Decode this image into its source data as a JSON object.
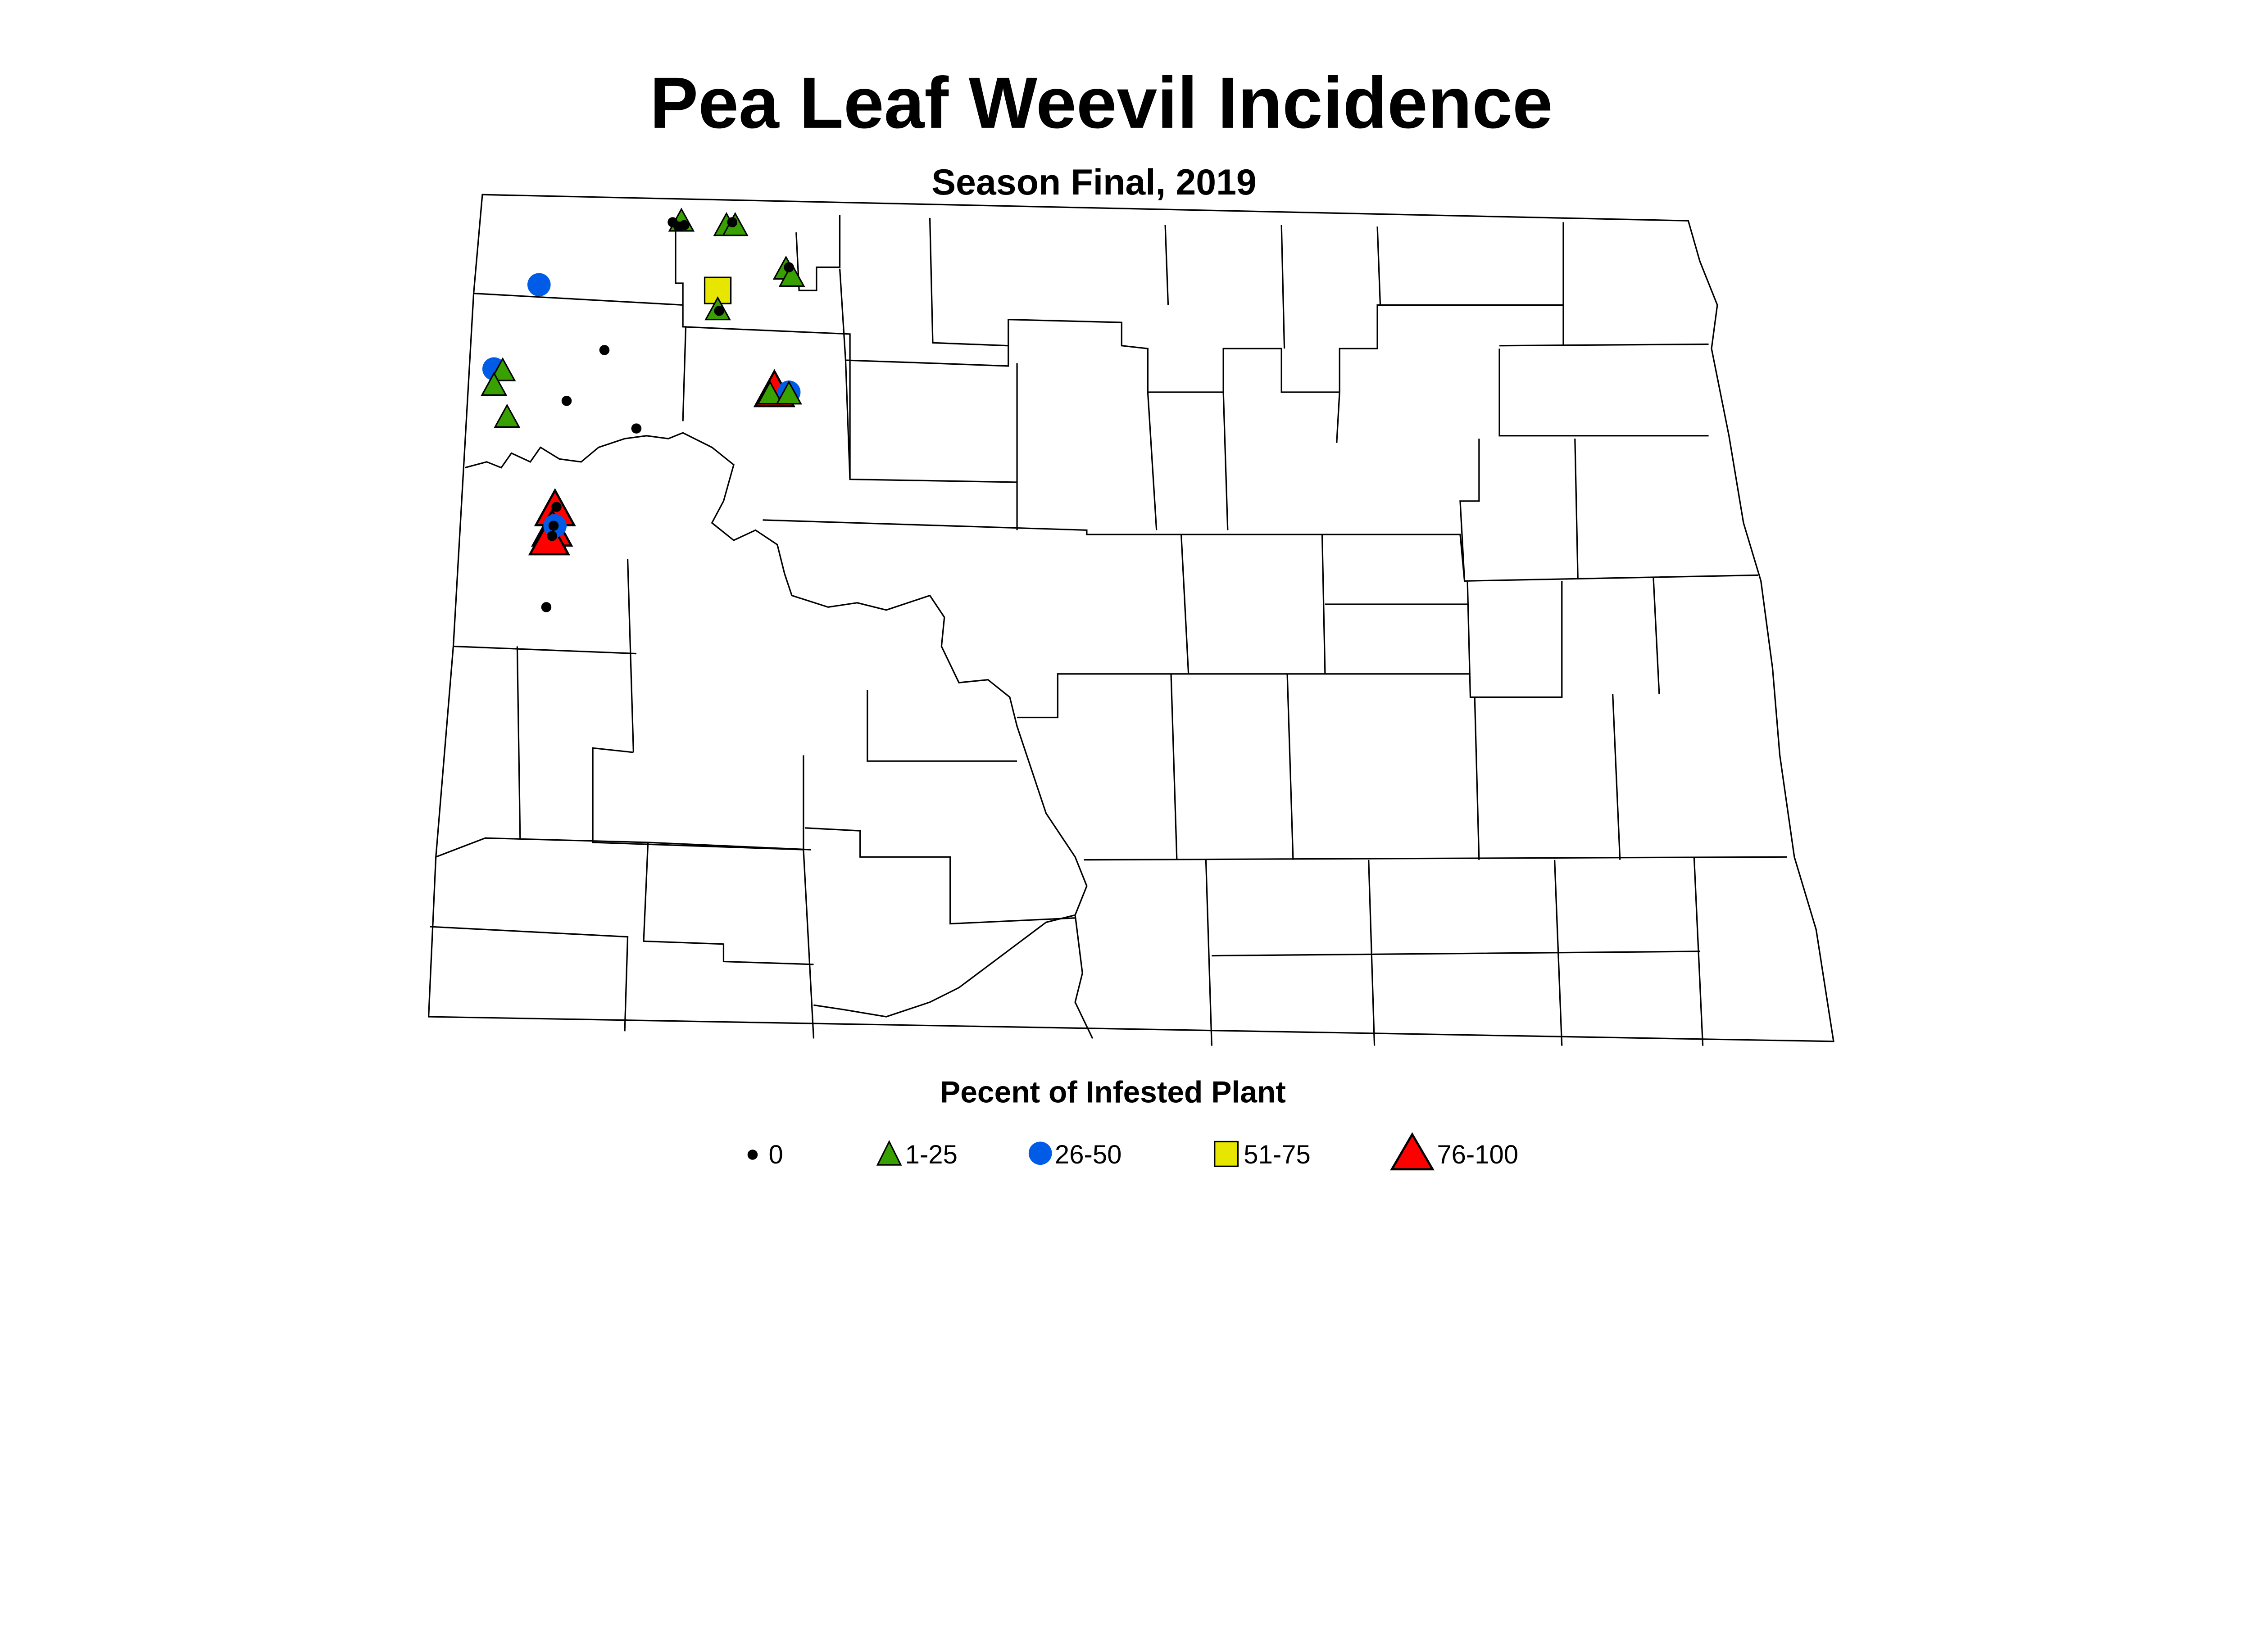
{
  "title": "Pea Leaf Weevil Incidence",
  "subtitle": "Season Final, 2019",
  "legend": {
    "title": "Pecent of Infested Plant",
    "items": [
      {
        "label": "0",
        "shape": "dot",
        "color": "#000000"
      },
      {
        "label": "1-25",
        "shape": "triangle",
        "color": "#38a000"
      },
      {
        "label": "26-50",
        "shape": "circle",
        "color": "#005ce6"
      },
      {
        "label": "51-75",
        "shape": "square",
        "color": "#e6e600"
      },
      {
        "label": "76-100",
        "shape": "large-triangle",
        "color": "#ff0000"
      }
    ]
  }
}
